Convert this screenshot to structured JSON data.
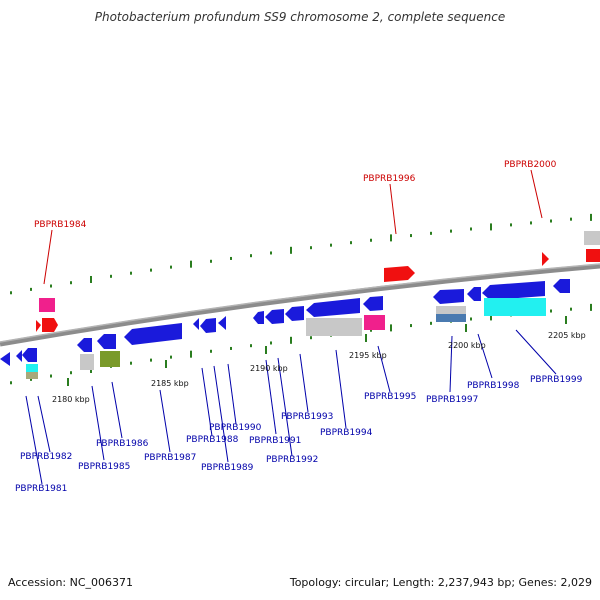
{
  "title": "Photobacterium profundum SS9 chromosome 2, complete sequence",
  "accession": "Accession: NC_006371",
  "summary": "Topology: circular; Length: 2,237,943 bp; Genes: 2,029",
  "colors": {
    "backbone": "#8c8c8c",
    "dots": "#2a7d1f",
    "label_plus": "#cc0000",
    "label_minus": "#0000aa",
    "gene_blue": "#1a1adb",
    "gene_red": "#f01010",
    "gene_pink": "#f0208c",
    "gene_gray": "#c8c8c8",
    "gene_cyan": "#22f0f0",
    "gene_olive": "#7a9a2a",
    "gene_steel": "#4a7ab0"
  },
  "scale_ticks": [
    "2180 kbp",
    "2185 kbp",
    "2190 kbp",
    "2195 kbp",
    "2200 kbp",
    "2205 kbp"
  ],
  "labels_plus": [
    "PBPRB1984",
    "PBPRB1996",
    "PBPRB2000"
  ],
  "labels_minus": [
    "PBPRB1981",
    "PBPRB1982",
    "PBPRB1985",
    "PBPRB1986",
    "PBPRB1987",
    "PBPRB1988",
    "PBPRB1989",
    "PBPRB1990",
    "PBPRB1991",
    "PBPRB1992",
    "PBPRB1993",
    "PBPRB1994",
    "PBPRB1995",
    "PBPRB1997",
    "PBPRB1998",
    "PBPRB1999"
  ]
}
